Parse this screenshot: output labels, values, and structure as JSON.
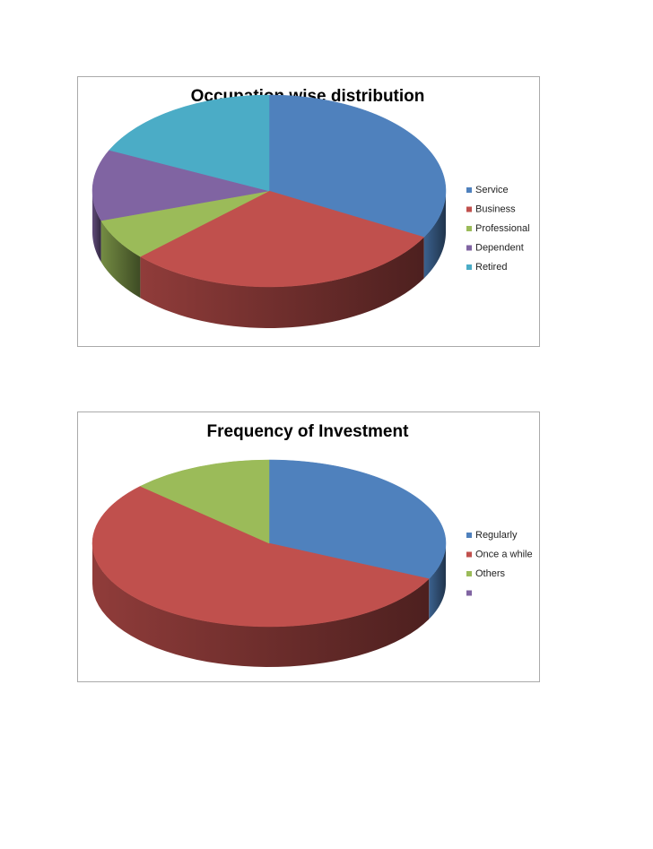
{
  "chart_data": [
    {
      "type": "pie3d",
      "title": "Occupation wise distribution",
      "categories": [
        "Service",
        "Business",
        "Professional",
        "Dependent",
        "Retired"
      ],
      "values": [
        33,
        30,
        7,
        12,
        18
      ],
      "colors": [
        "#4f81bd",
        "#c0504d",
        "#9bbb59",
        "#8064a2",
        "#4bacc6"
      ],
      "legend": "right"
    },
    {
      "type": "pie3d",
      "title": "Frequency of Investment",
      "categories": [
        "Regularly",
        "Once a while",
        "Others",
        null
      ],
      "values": [
        32,
        55,
        13,
        null
      ],
      "colors": [
        "#4f81bd",
        "#c0504d",
        "#9bbb59",
        "#8064a2"
      ],
      "legend": "right"
    }
  ]
}
